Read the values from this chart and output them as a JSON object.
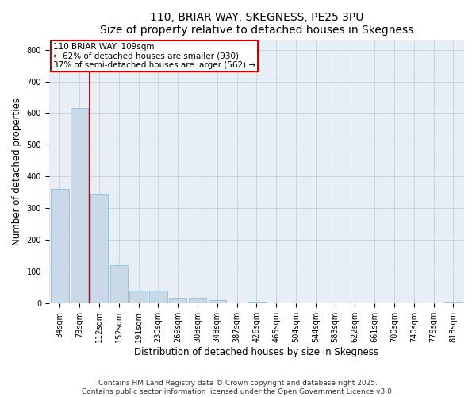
{
  "title": "110, BRIAR WAY, SKEGNESS, PE25 3PU",
  "subtitle": "Size of property relative to detached houses in Skegness",
  "xlabel": "Distribution of detached houses by size in Skegness",
  "ylabel": "Number of detached properties",
  "bins": [
    "34sqm",
    "73sqm",
    "112sqm",
    "152sqm",
    "191sqm",
    "230sqm",
    "269sqm",
    "308sqm",
    "348sqm",
    "387sqm",
    "426sqm",
    "465sqm",
    "504sqm",
    "544sqm",
    "583sqm",
    "622sqm",
    "661sqm",
    "700sqm",
    "740sqm",
    "779sqm",
    "818sqm"
  ],
  "values": [
    360,
    615,
    345,
    120,
    40,
    40,
    18,
    18,
    12,
    0,
    5,
    0,
    0,
    0,
    0,
    0,
    0,
    0,
    0,
    0,
    5
  ],
  "bar_color": "#c9d9e8",
  "bar_edge_color": "#8ab4d4",
  "vline_x": 1.5,
  "vline_color": "#cc0000",
  "annotation_line1": "110 BRIAR WAY: 109sqm",
  "annotation_line2": "← 62% of detached houses are smaller (930)",
  "annotation_line3": "37% of semi-detached houses are larger (562) →",
  "annotation_box_color": "#cc0000",
  "ylim": [
    0,
    830
  ],
  "yticks": [
    0,
    100,
    200,
    300,
    400,
    500,
    600,
    700,
    800
  ],
  "grid_color": "#c8d4e0",
  "background_color": "#e8eef5",
  "footer_line1": "Contains HM Land Registry data © Crown copyright and database right 2025.",
  "footer_line2": "Contains public sector information licensed under the Open Government Licence v3.0.",
  "title_fontsize": 10,
  "subtitle_fontsize": 9,
  "axis_label_fontsize": 8.5,
  "tick_fontsize": 7,
  "annotation_fontsize": 7.5,
  "footer_fontsize": 6.5
}
